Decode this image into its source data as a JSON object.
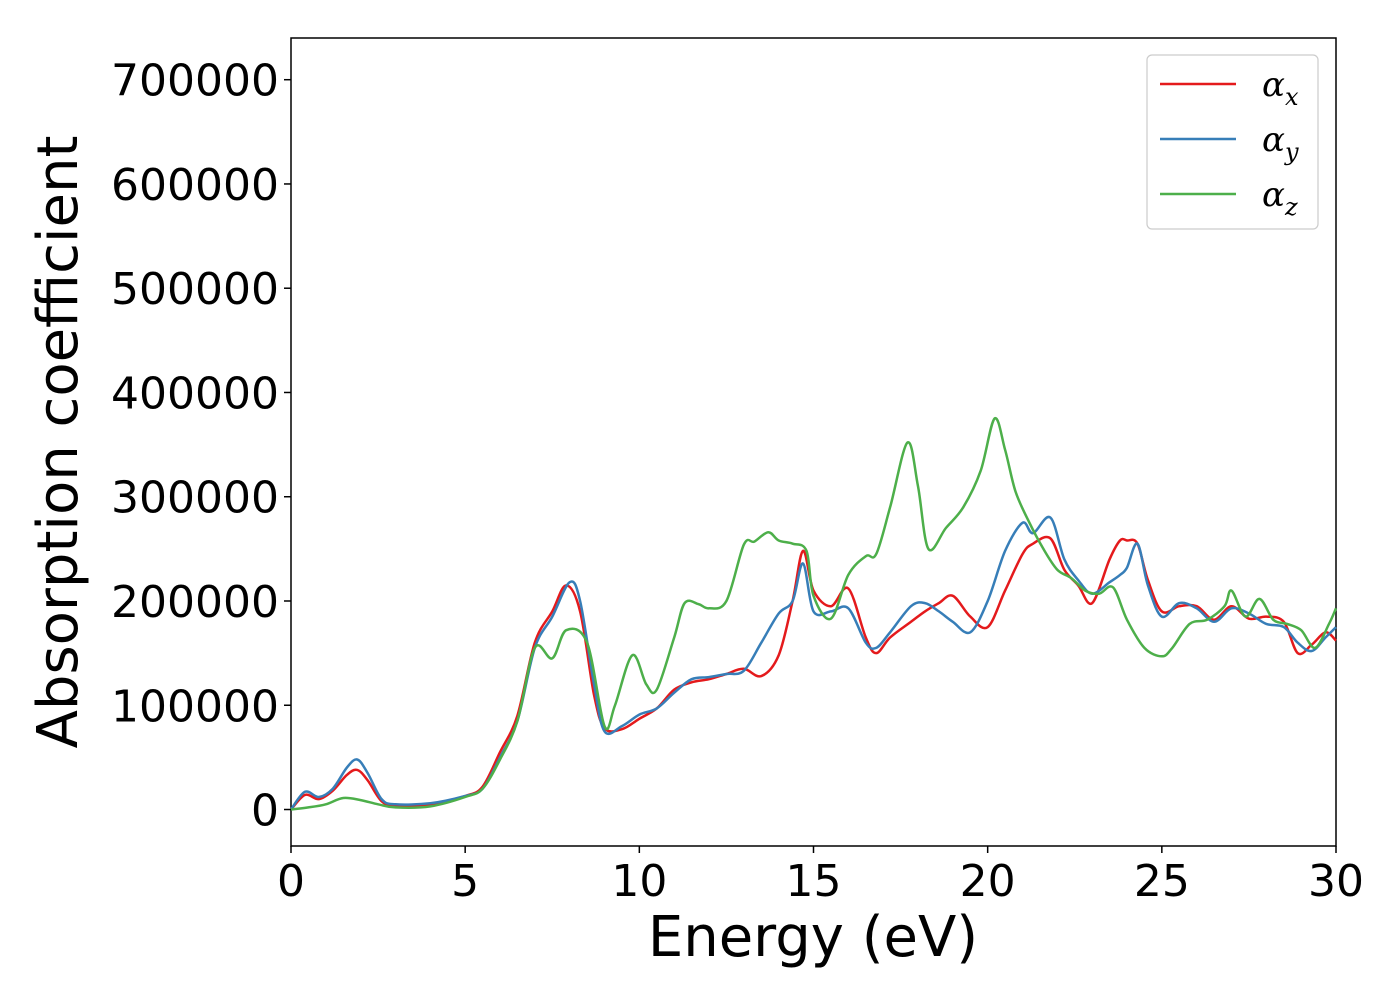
{
  "chart_data": {
    "type": "line",
    "xlabel": "Energy (eV)",
    "ylabel": "Absorption coefficient",
    "xlim": [
      0,
      30
    ],
    "ylim": [
      -35000,
      740000
    ],
    "xticks": [
      0,
      5,
      10,
      15,
      20,
      25,
      30
    ],
    "yticks": [
      0,
      100000,
      200000,
      300000,
      400000,
      500000,
      600000,
      700000
    ],
    "grid": false,
    "legend_position": "top-right",
    "series": [
      {
        "name": "αx",
        "symbol": "α",
        "subscript": "x",
        "color": "#e41a1c",
        "x": [
          0,
          0.4,
          0.8,
          1.2,
          1.6,
          1.9,
          2.2,
          2.6,
          3.0,
          4.0,
          5.0,
          5.5,
          6.0,
          6.5,
          7.0,
          7.5,
          7.9,
          8.3,
          8.7,
          9.0,
          9.5,
          10.0,
          10.5,
          11.0,
          11.5,
          12.0,
          12.5,
          13.0,
          13.5,
          14.0,
          14.4,
          14.7,
          15.0,
          15.5,
          16.0,
          16.5,
          16.8,
          17.2,
          17.8,
          18.2,
          18.6,
          19.0,
          19.5,
          20.0,
          20.5,
          21.0,
          21.3,
          21.8,
          22.2,
          22.6,
          23.0,
          23.5,
          23.8,
          24.0,
          24.3,
          24.6,
          25.0,
          25.5,
          26.0,
          26.5,
          27.0,
          27.5,
          28.0,
          28.5,
          28.9,
          29.3,
          29.7,
          30.0
        ],
        "y": [
          0,
          14000,
          10000,
          18000,
          33000,
          38000,
          28000,
          8000,
          4000,
          5000,
          13000,
          22000,
          55000,
          90000,
          160000,
          190000,
          215000,
          190000,
          110000,
          78000,
          77000,
          87000,
          97000,
          115000,
          122000,
          125000,
          130000,
          135000,
          128000,
          148000,
          200000,
          248000,
          210000,
          195000,
          212000,
          165000,
          150000,
          165000,
          180000,
          190000,
          198000,
          205000,
          185000,
          175000,
          210000,
          245000,
          255000,
          260000,
          230000,
          215000,
          198000,
          240000,
          258000,
          258000,
          255000,
          220000,
          190000,
          195000,
          195000,
          182000,
          195000,
          183000,
          185000,
          180000,
          150000,
          158000,
          170000,
          162000
        ]
      },
      {
        "name": "αy",
        "symbol": "α",
        "subscript": "y",
        "color": "#377eb8",
        "x": [
          0,
          0.4,
          0.8,
          1.2,
          1.6,
          1.9,
          2.2,
          2.6,
          3.0,
          4.0,
          5.0,
          5.5,
          6.0,
          6.5,
          7.0,
          7.5,
          8.0,
          8.3,
          8.7,
          9.0,
          9.5,
          10.0,
          10.5,
          11.0,
          11.5,
          12.0,
          12.5,
          13.0,
          13.5,
          14.0,
          14.4,
          14.7,
          15.0,
          15.5,
          16.0,
          16.5,
          16.8,
          17.2,
          17.8,
          18.2,
          18.6,
          19.0,
          19.5,
          20.0,
          20.5,
          21.0,
          21.3,
          21.8,
          22.2,
          22.6,
          23.0,
          23.5,
          23.8,
          24.0,
          24.3,
          24.6,
          25.0,
          25.5,
          26.0,
          26.5,
          27.0,
          27.5,
          28.0,
          28.5,
          28.9,
          29.3,
          29.7,
          30.0
        ],
        "y": [
          0,
          17000,
          12000,
          20000,
          40000,
          48000,
          35000,
          10000,
          5000,
          6000,
          13000,
          20000,
          50000,
          85000,
          155000,
          185000,
          218000,
          200000,
          120000,
          75000,
          80000,
          91000,
          97000,
          112000,
          125000,
          127000,
          130000,
          133000,
          160000,
          188000,
          200000,
          236000,
          190000,
          190000,
          193000,
          160000,
          155000,
          170000,
          195000,
          198000,
          190000,
          180000,
          170000,
          200000,
          248000,
          275000,
          265000,
          280000,
          240000,
          220000,
          207000,
          218000,
          225000,
          232000,
          255000,
          215000,
          185000,
          198000,
          193000,
          180000,
          193000,
          188000,
          178000,
          175000,
          160000,
          152000,
          165000,
          175000
        ]
      },
      {
        "name": "αz",
        "symbol": "α",
        "subscript": "z",
        "color": "#4daf4a",
        "x": [
          0,
          0.5,
          1.0,
          1.5,
          2.0,
          2.5,
          3.0,
          4.0,
          5.0,
          5.5,
          6.0,
          6.5,
          7.0,
          7.5,
          7.9,
          8.5,
          9.0,
          9.3,
          9.8,
          10.2,
          10.5,
          11.0,
          11.3,
          11.7,
          12.0,
          12.5,
          13.0,
          13.3,
          13.7,
          14.0,
          14.4,
          14.8,
          15.0,
          15.5,
          16.0,
          16.5,
          16.8,
          17.2,
          17.7,
          18.0,
          18.3,
          18.8,
          19.3,
          19.8,
          20.2,
          20.5,
          20.8,
          21.2,
          21.6,
          22.0,
          22.4,
          22.8,
          23.2,
          23.6,
          24.0,
          24.5,
          25.0,
          25.3,
          25.8,
          26.3,
          26.8,
          27.0,
          27.4,
          27.8,
          28.2,
          28.6,
          29.0,
          29.4,
          29.8,
          30.0
        ],
        "y": [
          0,
          2000,
          5000,
          11000,
          9000,
          5000,
          2000,
          3000,
          12000,
          20000,
          48000,
          85000,
          155000,
          145000,
          172000,
          160000,
          80000,
          100000,
          148000,
          120000,
          115000,
          165000,
          198000,
          197000,
          193000,
          200000,
          254000,
          257000,
          266000,
          258000,
          255000,
          248000,
          205000,
          183000,
          225000,
          243000,
          245000,
          290000,
          352000,
          310000,
          250000,
          270000,
          290000,
          325000,
          375000,
          345000,
          305000,
          275000,
          250000,
          230000,
          222000,
          210000,
          207000,
          213000,
          182000,
          155000,
          147000,
          155000,
          178000,
          182000,
          195000,
          210000,
          185000,
          202000,
          182000,
          178000,
          172000,
          155000,
          178000,
          193000
        ]
      }
    ]
  }
}
